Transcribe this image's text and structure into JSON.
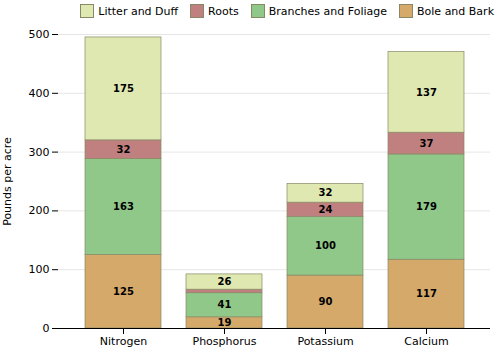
{
  "chart_data": {
    "type": "bar",
    "stacked": true,
    "categories": [
      "Nitrogen",
      "Phosphorus",
      "Potassium",
      "Calcium"
    ],
    "series": [
      {
        "name": "Bole and Bark",
        "color": "#d4a96a",
        "values": [
          125,
          19,
          90,
          117
        ],
        "value_labels": [
          "125",
          "19",
          "90",
          "117"
        ]
      },
      {
        "name": "Branches and Foliage",
        "color": "#90c88a",
        "values": [
          163,
          41,
          100,
          179
        ],
        "value_labels": [
          "163",
          "41",
          "100",
          "179"
        ]
      },
      {
        "name": "Roots",
        "color": "#c08080",
        "values": [
          32,
          6,
          24,
          37
        ],
        "value_labels": [
          "32",
          null,
          "24",
          "37"
        ]
      },
      {
        "name": "Litter and Duff",
        "color": "#dfe8b0",
        "values": [
          175,
          26,
          32,
          137
        ],
        "value_labels": [
          "175",
          "26",
          "32",
          "137"
        ]
      }
    ],
    "ylabel": "Pounds per acre",
    "ylim": [
      0,
      500
    ],
    "yticks": [
      0,
      100,
      200,
      300,
      400,
      500
    ],
    "grid": true,
    "legend": "upper right",
    "data_labels": true
  }
}
